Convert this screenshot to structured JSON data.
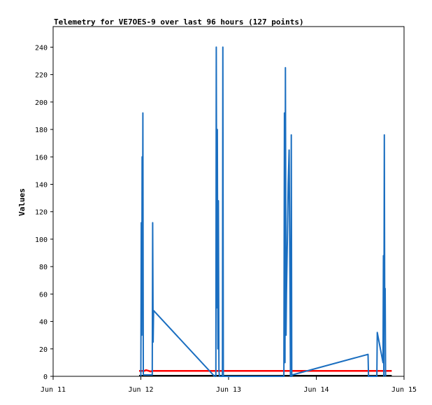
{
  "chart_data": {
    "type": "line",
    "title": "Telemetry for VE7OES-9 over last 96 hours (127 points)",
    "ylabel": "Values",
    "xlabel": "",
    "x_axis": {
      "ticks": [
        "Jun 11",
        "Jun 12",
        "Jun 13",
        "Jun 14",
        "Jun 15"
      ],
      "range_days": [
        0,
        4
      ]
    },
    "y_axis": {
      "ticks": [
        0,
        20,
        40,
        60,
        80,
        100,
        120,
        140,
        160,
        180,
        200,
        220,
        240
      ],
      "range": [
        0,
        255
      ]
    },
    "grid": false,
    "legend": "none",
    "series": [
      {
        "color": "#ff0000",
        "points": [
          [
            0.98,
            4
          ],
          [
            1.04,
            4
          ],
          [
            1.06,
            4.5
          ],
          [
            1.09,
            4
          ],
          [
            1.11,
            3.5
          ],
          [
            1.13,
            4
          ],
          [
            1.3,
            4
          ],
          [
            1.6,
            4
          ],
          [
            1.9,
            4
          ],
          [
            2.2,
            4
          ],
          [
            2.6,
            4
          ],
          [
            3.0,
            4
          ],
          [
            3.4,
            4
          ],
          [
            3.74,
            4
          ],
          [
            3.8,
            4
          ],
          [
            3.86,
            4
          ]
        ]
      },
      {
        "color": "#000000",
        "points": [
          [
            0.98,
            0.5
          ],
          [
            1.3,
            0.5
          ],
          [
            1.8,
            0.5
          ],
          [
            2.3,
            0.5
          ],
          [
            2.8,
            0.5
          ],
          [
            3.3,
            0.5
          ],
          [
            3.6,
            0.5
          ],
          [
            3.86,
            0.5
          ]
        ]
      },
      {
        "color": "#1a6ec0",
        "points": [
          [
            1.0,
            0
          ],
          [
            1.005,
            112
          ],
          [
            1.01,
            30
          ],
          [
            1.014,
            160
          ],
          [
            1.018,
            60
          ],
          [
            1.023,
            192
          ],
          [
            1.028,
            2
          ],
          [
            1.03,
            1
          ],
          [
            1.13,
            1
          ],
          [
            1.135,
            112
          ],
          [
            1.14,
            25
          ],
          [
            1.145,
            48
          ],
          [
            1.84,
            0
          ],
          [
            1.855,
            0
          ],
          [
            1.86,
            240
          ],
          [
            1.866,
            50
          ],
          [
            1.872,
            180
          ],
          [
            1.878,
            20
          ],
          [
            1.884,
            128
          ],
          [
            1.89,
            5
          ],
          [
            1.895,
            0
          ],
          [
            1.93,
            0
          ],
          [
            1.935,
            240
          ],
          [
            1.94,
            0
          ],
          [
            2.63,
            0
          ],
          [
            2.637,
            192
          ],
          [
            2.643,
            10
          ],
          [
            2.648,
            225
          ],
          [
            2.655,
            30
          ],
          [
            2.66,
            60
          ],
          [
            2.67,
            100
          ],
          [
            2.68,
            140
          ],
          [
            2.69,
            165
          ],
          [
            2.7,
            60
          ],
          [
            2.705,
            0
          ],
          [
            2.71,
            0
          ],
          [
            2.715,
            176
          ],
          [
            2.72,
            0
          ],
          [
            2.725,
            1
          ],
          [
            3.59,
            16
          ],
          [
            3.595,
            0
          ],
          [
            3.69,
            0
          ],
          [
            3.695,
            32
          ],
          [
            3.76,
            10
          ],
          [
            3.765,
            88
          ],
          [
            3.77,
            0
          ],
          [
            3.775,
            176
          ],
          [
            3.78,
            40
          ],
          [
            3.785,
            64
          ],
          [
            3.79,
            0
          ]
        ]
      }
    ]
  }
}
